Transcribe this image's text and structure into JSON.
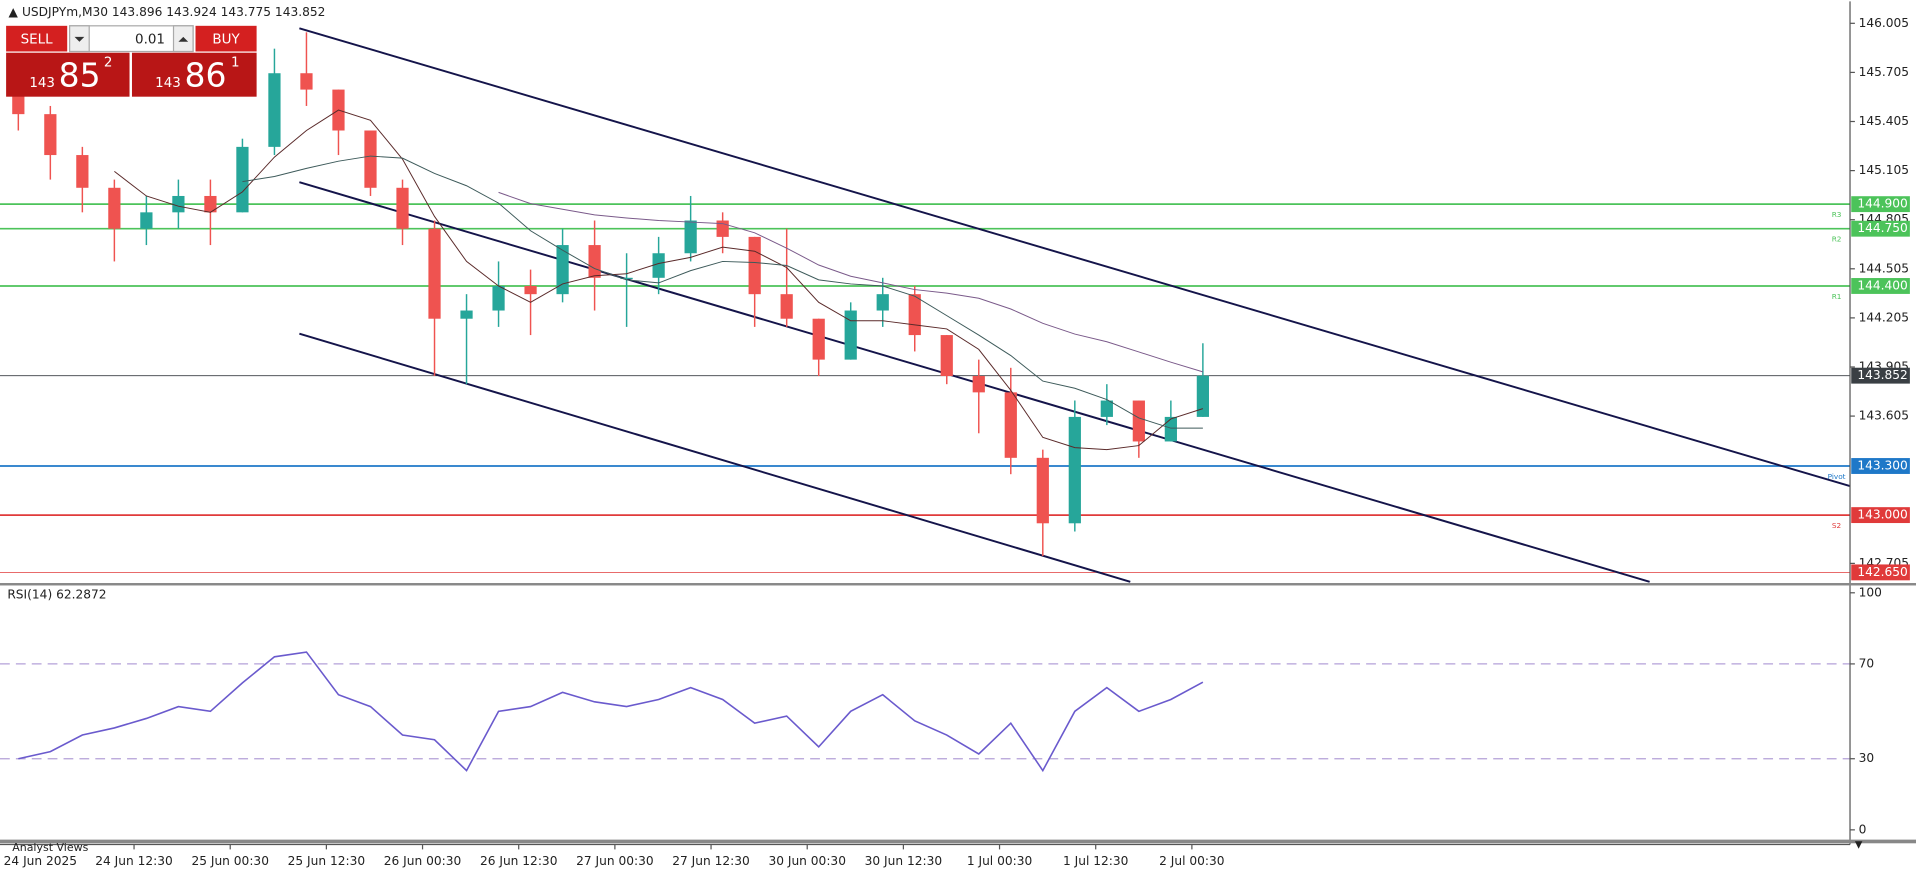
{
  "header": {
    "symbol": "USDJPYm,M30",
    "ohlc": [
      143.896,
      143.924,
      143.775,
      143.852
    ]
  },
  "trade_panel": {
    "sell": "SELL",
    "buy": "BUY",
    "lot": "0.01",
    "bid": {
      "big": "143",
      "main": "85",
      "sup": "2"
    },
    "ask": {
      "big": "143",
      "main": "86",
      "sup": "1"
    }
  },
  "price_axis": {
    "ylim": [
      142.585,
      146.139
    ],
    "ticks": [
      146.005,
      145.705,
      145.405,
      145.105,
      144.805,
      144.505,
      144.205,
      143.905,
      143.605,
      142.705
    ]
  },
  "levels": [
    {
      "value": 144.9,
      "label": "144.900",
      "color": "#4cc35a",
      "tag": "R3"
    },
    {
      "value": 144.75,
      "label": "144.750",
      "color": "#4cc35a",
      "tag": "R2"
    },
    {
      "value": 144.4,
      "label": "144.400",
      "color": "#4cc35a",
      "tag": "R1"
    },
    {
      "value": 143.852,
      "label": "143.852",
      "color": "#3a3f44"
    },
    {
      "value": 143.3,
      "label": "143.300",
      "color": "#1e78c8",
      "tag": "Pivot"
    },
    {
      "value": 143.0,
      "label": "143.000",
      "color": "#e03a3a",
      "tag": "S2"
    },
    {
      "value": 142.65,
      "label": "142.650",
      "color": "#e03a3a"
    }
  ],
  "candles": [
    [
      145.6,
      145.7,
      145.35,
      145.45
    ],
    [
      145.45,
      145.5,
      145.05,
      145.2
    ],
    [
      145.2,
      145.25,
      144.85,
      145.0
    ],
    [
      145.0,
      145.05,
      144.55,
      144.75
    ],
    [
      144.75,
      144.95,
      144.65,
      144.85
    ],
    [
      144.85,
      145.05,
      144.75,
      144.95
    ],
    [
      144.95,
      145.05,
      144.65,
      144.85
    ],
    [
      144.85,
      145.3,
      144.85,
      145.25
    ],
    [
      145.25,
      145.85,
      145.2,
      145.7
    ],
    [
      145.7,
      145.95,
      145.5,
      145.6
    ],
    [
      145.6,
      145.6,
      145.2,
      145.35
    ],
    [
      145.35,
      145.35,
      144.95,
      145.0
    ],
    [
      145.0,
      145.05,
      144.65,
      144.75
    ],
    [
      144.75,
      144.8,
      143.85,
      144.2
    ],
    [
      144.2,
      144.35,
      143.8,
      144.25
    ],
    [
      144.25,
      144.55,
      144.15,
      144.4
    ],
    [
      144.4,
      144.5,
      144.1,
      144.35
    ],
    [
      144.35,
      144.75,
      144.3,
      144.65
    ],
    [
      144.65,
      144.8,
      144.25,
      144.45
    ],
    [
      144.45,
      144.6,
      144.15,
      144.45
    ],
    [
      144.45,
      144.7,
      144.35,
      144.6
    ],
    [
      144.6,
      144.95,
      144.55,
      144.8
    ],
    [
      144.8,
      144.85,
      144.6,
      144.7
    ],
    [
      144.7,
      144.7,
      144.15,
      144.35
    ],
    [
      144.35,
      144.75,
      144.15,
      144.2
    ],
    [
      144.2,
      144.2,
      143.85,
      143.95
    ],
    [
      143.95,
      144.3,
      143.95,
      144.25
    ],
    [
      144.25,
      144.45,
      144.15,
      144.35
    ],
    [
      144.35,
      144.4,
      144.0,
      144.1
    ],
    [
      144.1,
      144.1,
      143.8,
      143.85
    ],
    [
      143.85,
      143.95,
      143.5,
      143.75
    ],
    [
      143.75,
      143.9,
      143.25,
      143.35
    ],
    [
      143.35,
      143.4,
      142.75,
      142.95
    ],
    [
      142.95,
      143.7,
      142.9,
      143.6
    ],
    [
      143.6,
      143.8,
      143.55,
      143.7
    ],
    [
      143.7,
      143.7,
      143.35,
      143.45
    ],
    [
      143.45,
      143.7,
      143.45,
      143.6
    ],
    [
      143.6,
      144.05,
      143.6,
      143.852
    ]
  ],
  "time_labels": [
    "24 Jun 2025",
    "24 Jun 12:30",
    "25 Jun 00:30",
    "25 Jun 12:30",
    "26 Jun 00:30",
    "26 Jun 12:30",
    "27 Jun 00:30",
    "27 Jun 12:30",
    "30 Jun 00:30",
    "30 Jun 12:30",
    "1 Jul 00:30",
    "1 Jul 12:30",
    "2 Jul 00:30"
  ],
  "rsi": {
    "title": "RSI(14) 62.2872",
    "ylim": [
      0,
      100
    ],
    "ticks": [
      100,
      70,
      30,
      0
    ],
    "levels": [
      70,
      30
    ],
    "color": "#6a5acd",
    "values": [
      30,
      33,
      40,
      43,
      47,
      52,
      50,
      62,
      73,
      75,
      57,
      52,
      40,
      38,
      25,
      50,
      52,
      58,
      54,
      52,
      55,
      60,
      55,
      45,
      48,
      35,
      50,
      57,
      46,
      40,
      32,
      45,
      25,
      50,
      60,
      50,
      55,
      62.2872
    ]
  },
  "footer": "Analyst Views"
}
